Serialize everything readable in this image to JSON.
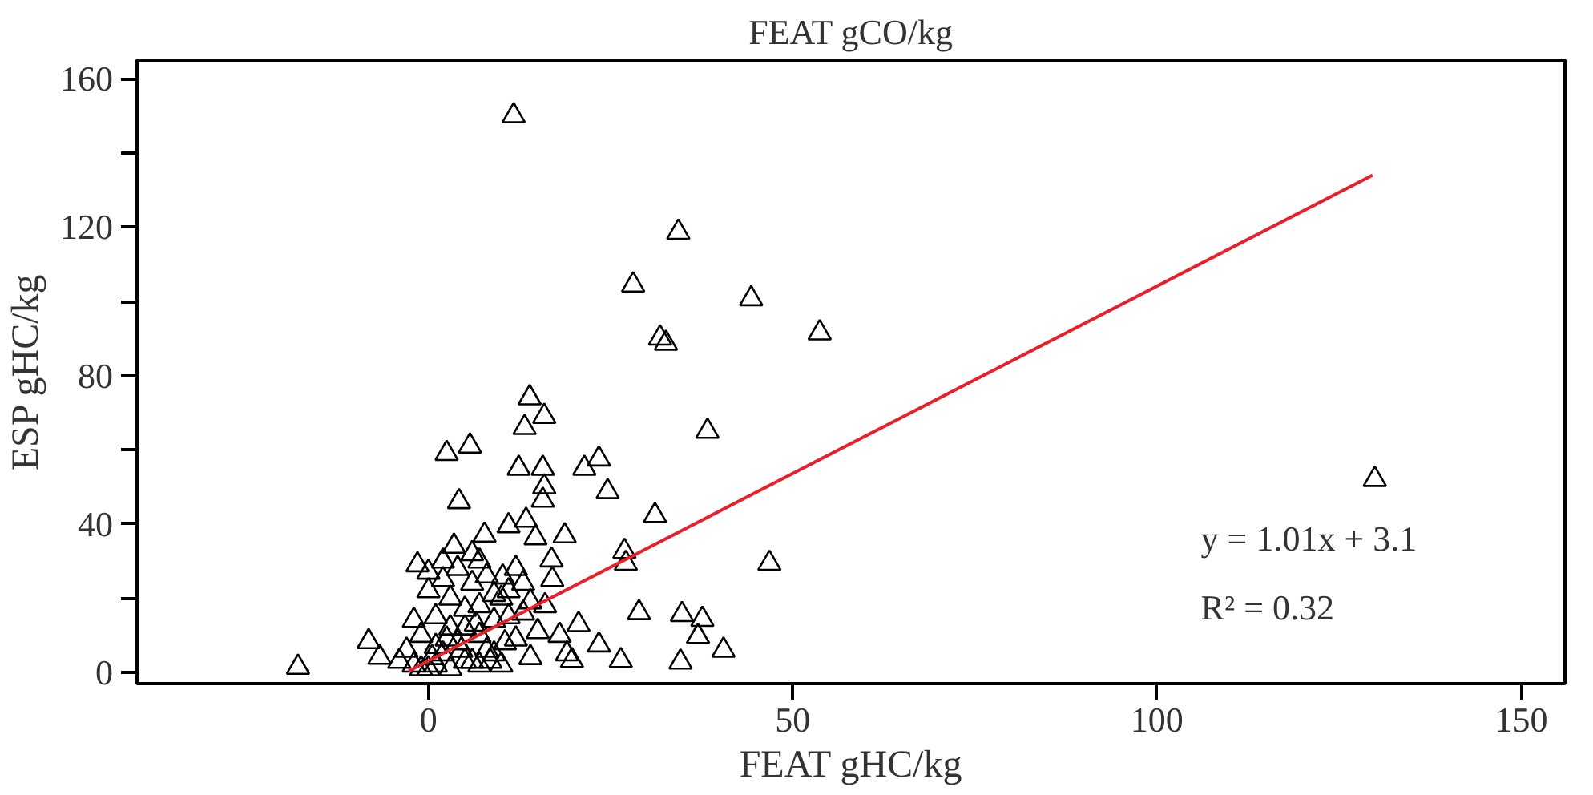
{
  "chart_data": {
    "type": "scatter",
    "title": "FEAT gCO/kg",
    "xlabel": "FEAT gHC/kg",
    "ylabel": "ESP gHC/kg",
    "xlim": [
      -40,
      156
    ],
    "ylim": [
      -3,
      165
    ],
    "xticks": [
      0,
      50,
      100,
      150
    ],
    "yticks": [
      0,
      {
        "value": 20,
        "label": null
      },
      40,
      {
        "value": 60,
        "label": null
      },
      80,
      {
        "value": 100,
        "label": null
      },
      120,
      {
        "value": 140,
        "label": null
      },
      160
    ],
    "grid": false,
    "annotations": [
      "y = 1.01x + 3.1",
      "R² = 0.32"
    ],
    "series": [
      {
        "marker": "triangle",
        "color": "#000000",
        "x": [
          11.7,
          34.3,
          28.1,
          44.3,
          53.7,
          31.8,
          32.6,
          13.9,
          15.9,
          13.2,
          38.3,
          5.7,
          2.5,
          12.4,
          15.7,
          21.4,
          23.4,
          24.6,
          15.9,
          15.7,
          4.2,
          31.1,
          18.7,
          26.9,
          27.1,
          46.8,
          28.9,
          34.8,
          37.6,
          37.0,
          40.5,
          34.6,
          26.4,
          19.7,
          20.6,
          23.4,
          -17.9,
          -8.2,
          -6.7,
          129.9,
          -1.5,
          0,
          3.5,
          7.7,
          11,
          13.4,
          14.7,
          16.9,
          7,
          10.2,
          -4,
          -3,
          -2,
          -1,
          0,
          1,
          2,
          3,
          4,
          5,
          6,
          7,
          8,
          9,
          10,
          11,
          12,
          13,
          14,
          15,
          -2,
          0,
          2,
          4,
          6,
          8,
          10,
          12,
          14,
          1,
          3,
          5,
          7,
          9,
          11,
          13,
          0.5,
          2.5,
          4.5,
          6.5,
          8.5,
          10.5,
          -1,
          1,
          3,
          5,
          7,
          9,
          16,
          18,
          17,
          19,
          2,
          6
        ],
        "values": [
          150,
          118.6,
          104.4,
          100.7,
          91.5,
          90.1,
          88.7,
          74,
          69,
          66,
          65,
          61,
          59,
          55,
          55,
          55,
          57.5,
          48.7,
          50,
          46.4,
          46,
          42.3,
          36.8,
          32.6,
          29.4,
          29.4,
          16.1,
          15.6,
          14.3,
          9.7,
          6,
          2.8,
          3.2,
          3.2,
          12.9,
          7.4,
          1.4,
          8.3,
          4.1,
          52,
          29,
          27,
          34,
          37,
          39.5,
          41,
          36.3,
          30.3,
          30,
          25.7,
          3,
          6,
          2,
          10,
          1,
          15,
          5,
          20,
          8,
          12,
          3,
          18,
          6,
          14,
          2,
          22,
          9,
          16,
          4,
          11,
          14,
          22,
          25,
          28,
          24,
          26,
          20,
          28,
          19,
          7,
          12,
          17,
          10,
          21,
          15,
          24,
          4,
          9,
          6,
          13,
          3,
          8,
          1,
          2,
          1,
          3,
          2,
          5,
          18,
          10,
          25,
          5,
          30,
          32
        ]
      },
      {
        "type": "line",
        "color": "#e8202a",
        "x": [
          -2.7,
          129.6
        ],
        "values": [
          0.4,
          134.0
        ]
      }
    ]
  }
}
